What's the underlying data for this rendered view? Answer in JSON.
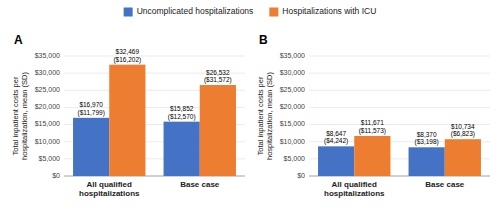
{
  "chart_data": [
    {
      "type": "bar",
      "title": "A",
      "categories": [
        "All qualified\nhospitalizations",
        "Base case"
      ],
      "series": [
        {
          "name": "Uncomplicated hospitalizations",
          "color": "#4472C4",
          "values": [
            16970,
            15852
          ],
          "value_labels": [
            "$16,970\n($11,799)",
            "$15,852\n($12,570)"
          ]
        },
        {
          "name": "Hospitalizations with ICU",
          "color": "#ED7D31",
          "values": [
            32469,
            26532
          ],
          "value_labels": [
            "$32,469\n($16,202)",
            "$26,532\n($31,572)"
          ]
        }
      ],
      "y_label": "Total inpatient costs per\nhospitalization, mean (SD)",
      "ylim": [
        0,
        35000
      ],
      "yticks": [
        {
          "value": 0,
          "label": "$0"
        },
        {
          "value": 5000,
          "label": "$5,000"
        },
        {
          "value": 10000,
          "label": "$10,000"
        },
        {
          "value": 15000,
          "label": "$15,000"
        },
        {
          "value": 20000,
          "label": "$20,000"
        },
        {
          "value": 25000,
          "label": "$25,000"
        },
        {
          "value": 30000,
          "label": "$30,000"
        },
        {
          "value": 35000,
          "label": "$35,000"
        }
      ],
      "grid": true,
      "data_labels": true,
      "legend": "top"
    },
    {
      "type": "bar",
      "title": "B",
      "categories": [
        "All qualified\nhospitalizations",
        "Base case"
      ],
      "series": [
        {
          "name": "Uncomplicated hospitalizations",
          "color": "#4472C4",
          "values": [
            8647,
            8370
          ],
          "value_labels": [
            "$8,647\n($4,242)",
            "$8,370\n($3,198)"
          ]
        },
        {
          "name": "Hospitalizations with ICU",
          "color": "#ED7D31",
          "values": [
            11671,
            10734
          ],
          "value_labels": [
            "$11,671\n($11,573)",
            "$10,734\n($6,823)"
          ]
        }
      ],
      "y_label": "Total inpatient costs per\nhospitalization, mean (SD)",
      "ylim": [
        0,
        35000
      ],
      "yticks": [
        {
          "value": 0,
          "label": "$0"
        },
        {
          "value": 5000,
          "label": "$5,000"
        },
        {
          "value": 10000,
          "label": "$10,000"
        },
        {
          "value": 15000,
          "label": "$15,000"
        },
        {
          "value": 20000,
          "label": "$20,000"
        },
        {
          "value": 25000,
          "label": "$25,000"
        },
        {
          "value": 30000,
          "label": "$30,000"
        },
        {
          "value": 35000,
          "label": "$35,000"
        }
      ],
      "grid": true,
      "data_labels": true
    }
  ]
}
